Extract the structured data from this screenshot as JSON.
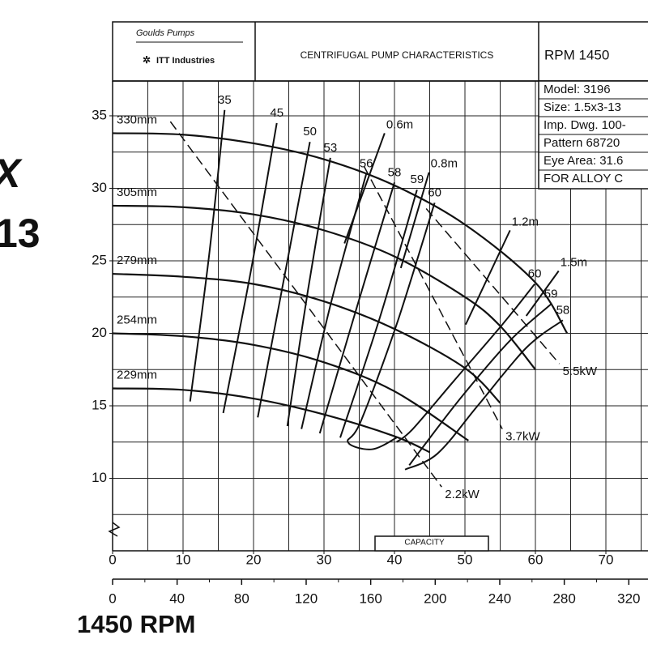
{
  "chart_data": {
    "type": "line",
    "cut_title": [
      "X",
      "13"
    ],
    "footer": "1450 RPM",
    "header": {
      "brand": "Goulds Pumps",
      "company": "ITT Industries",
      "title": "CENTRIFUGAL PUMP CHARACTERISTICS",
      "rpm": "RPM  1450",
      "info": [
        "Model: 3196",
        "Size: 1.5x3-13",
        "Imp. Dwg. 100-",
        "Pattern 68720",
        "Eye Area:  31.6",
        "FOR ALLOY C"
      ]
    },
    "x_label": "CAPACITY",
    "xlim": [
      0,
      76
    ],
    "xticks": [
      0,
      10,
      20,
      30,
      40,
      50,
      60,
      70
    ],
    "x2lim": [
      0,
      332
    ],
    "x2ticks": [
      0,
      40,
      80,
      120,
      160,
      200,
      240,
      280,
      320
    ],
    "ylim": [
      5,
      37.4
    ],
    "yticks": [
      10,
      15,
      20,
      25,
      30,
      35
    ],
    "xgrid": [
      5,
      10,
      15,
      20,
      25,
      30,
      35,
      40,
      45,
      50,
      55,
      60,
      65,
      70,
      75
    ],
    "ygrid": [
      7.5,
      10,
      12.5,
      15,
      17.5,
      20,
      22.5,
      25,
      27.5,
      30,
      32.5,
      35
    ],
    "color": "#111111",
    "head_curves": [
      {
        "name": "330mm",
        "x": [
          0,
          10,
          20,
          30,
          40,
          50,
          60,
          64.5
        ],
        "values": [
          33.8,
          33.7,
          33.1,
          32.0,
          30.2,
          27.5,
          23.5,
          20.0
        ]
      },
      {
        "name": "305mm",
        "x": [
          0,
          10,
          20,
          30,
          40,
          50,
          55,
          60
        ],
        "values": [
          28.8,
          28.7,
          28.2,
          27.1,
          25.3,
          22.5,
          20.5,
          17.5
        ]
      },
      {
        "name": "279mm",
        "x": [
          0,
          10,
          20,
          30,
          40,
          50,
          55
        ],
        "values": [
          24.1,
          23.9,
          23.4,
          22.2,
          20.3,
          17.6,
          15.2
        ]
      },
      {
        "name": "254mm",
        "x": [
          0,
          10,
          20,
          30,
          40,
          50.5
        ],
        "values": [
          20.0,
          19.8,
          19.2,
          18.0,
          16.0,
          12.6
        ]
      },
      {
        "name": "229mm",
        "x": [
          0,
          10,
          20,
          30,
          40,
          45
        ],
        "values": [
          16.2,
          16.1,
          15.5,
          14.4,
          12.9,
          11.8
        ]
      }
    ],
    "efficiency_curves": [
      {
        "name": "35",
        "x": [
          15.9,
          13.7,
          11.0
        ],
        "values": [
          35.4,
          25.4,
          15.3
        ]
      },
      {
        "name": "45",
        "x": [
          23.3,
          19.7,
          15.7
        ],
        "values": [
          34.5,
          24.5,
          14.5
        ]
      },
      {
        "name": "50",
        "x": [
          28.0,
          24.3,
          20.6
        ],
        "values": [
          33.2,
          23.7,
          14.2
        ]
      },
      {
        "name": "53",
        "x": [
          30.9,
          27.7,
          24.8
        ],
        "values": [
          32.1,
          22.9,
          13.6
        ]
      },
      {
        "name": "56",
        "x": [
          36.0,
          31.1,
          26.8
        ],
        "values": [
          31.0,
          22.3,
          13.4
        ]
      },
      {
        "name": "58",
        "x": [
          40.0,
          34.6,
          29.4
        ],
        "values": [
          30.4,
          21.7,
          13.1
        ]
      },
      {
        "name": "59",
        "x": [
          43.2,
          38.0,
          32.3
        ],
        "values": [
          29.9,
          21.2,
          12.8
        ]
      },
      {
        "name": "60",
        "x": [
          45.7,
          40.3,
          35.2,
          33.4,
          36.8,
          40.3
        ],
        "values": [
          29.0,
          20.6,
          13.9,
          12.5,
          12.0,
          12.8
        ]
      },
      {
        "name": "60",
        "x": [
          59.9,
          55.3,
          48.4,
          42.6,
          40.3
        ],
        "values": [
          23.4,
          20.6,
          16.7,
          13.4,
          12.5
        ]
      },
      {
        "name": "59",
        "x": [
          62.2,
          56.4,
          49.5,
          43.8,
          42.1
        ],
        "values": [
          22.0,
          19.5,
          15.6,
          12.0,
          10.9
        ]
      },
      {
        "name": "58",
        "x": [
          63.9,
          58.7,
          51.8,
          46.1,
          41.5
        ],
        "values": [
          20.9,
          19.0,
          15.0,
          11.7,
          10.6
        ]
      }
    ],
    "power_curves": [
      {
        "name": "5.5kW",
        "x": [
          44.5,
          63.4
        ],
        "values": [
          28.6,
          17.9
        ]
      },
      {
        "name": "3.7kW",
        "x": [
          35.7,
          55.3
        ],
        "values": [
          31.5,
          13.4
        ]
      },
      {
        "name": "2.2kW",
        "x": [
          8.2,
          46.7
        ],
        "values": [
          34.6,
          9.4
        ]
      }
    ],
    "npsh_curves": [
      {
        "name": "0.6m",
        "x": [
          38.6,
          32.9
        ],
        "values": [
          33.8,
          26.2
        ]
      },
      {
        "name": "0.8m",
        "x": [
          44.9,
          40.9
        ],
        "values": [
          31.1,
          24.5
        ]
      },
      {
        "name": "1.2m",
        "x": [
          56.4,
          50.1
        ],
        "values": [
          27.1,
          20.6
        ]
      },
      {
        "name": "1.5m",
        "x": [
          63.3,
          58.7
        ],
        "values": [
          24.3,
          21.2
        ]
      }
    ]
  }
}
